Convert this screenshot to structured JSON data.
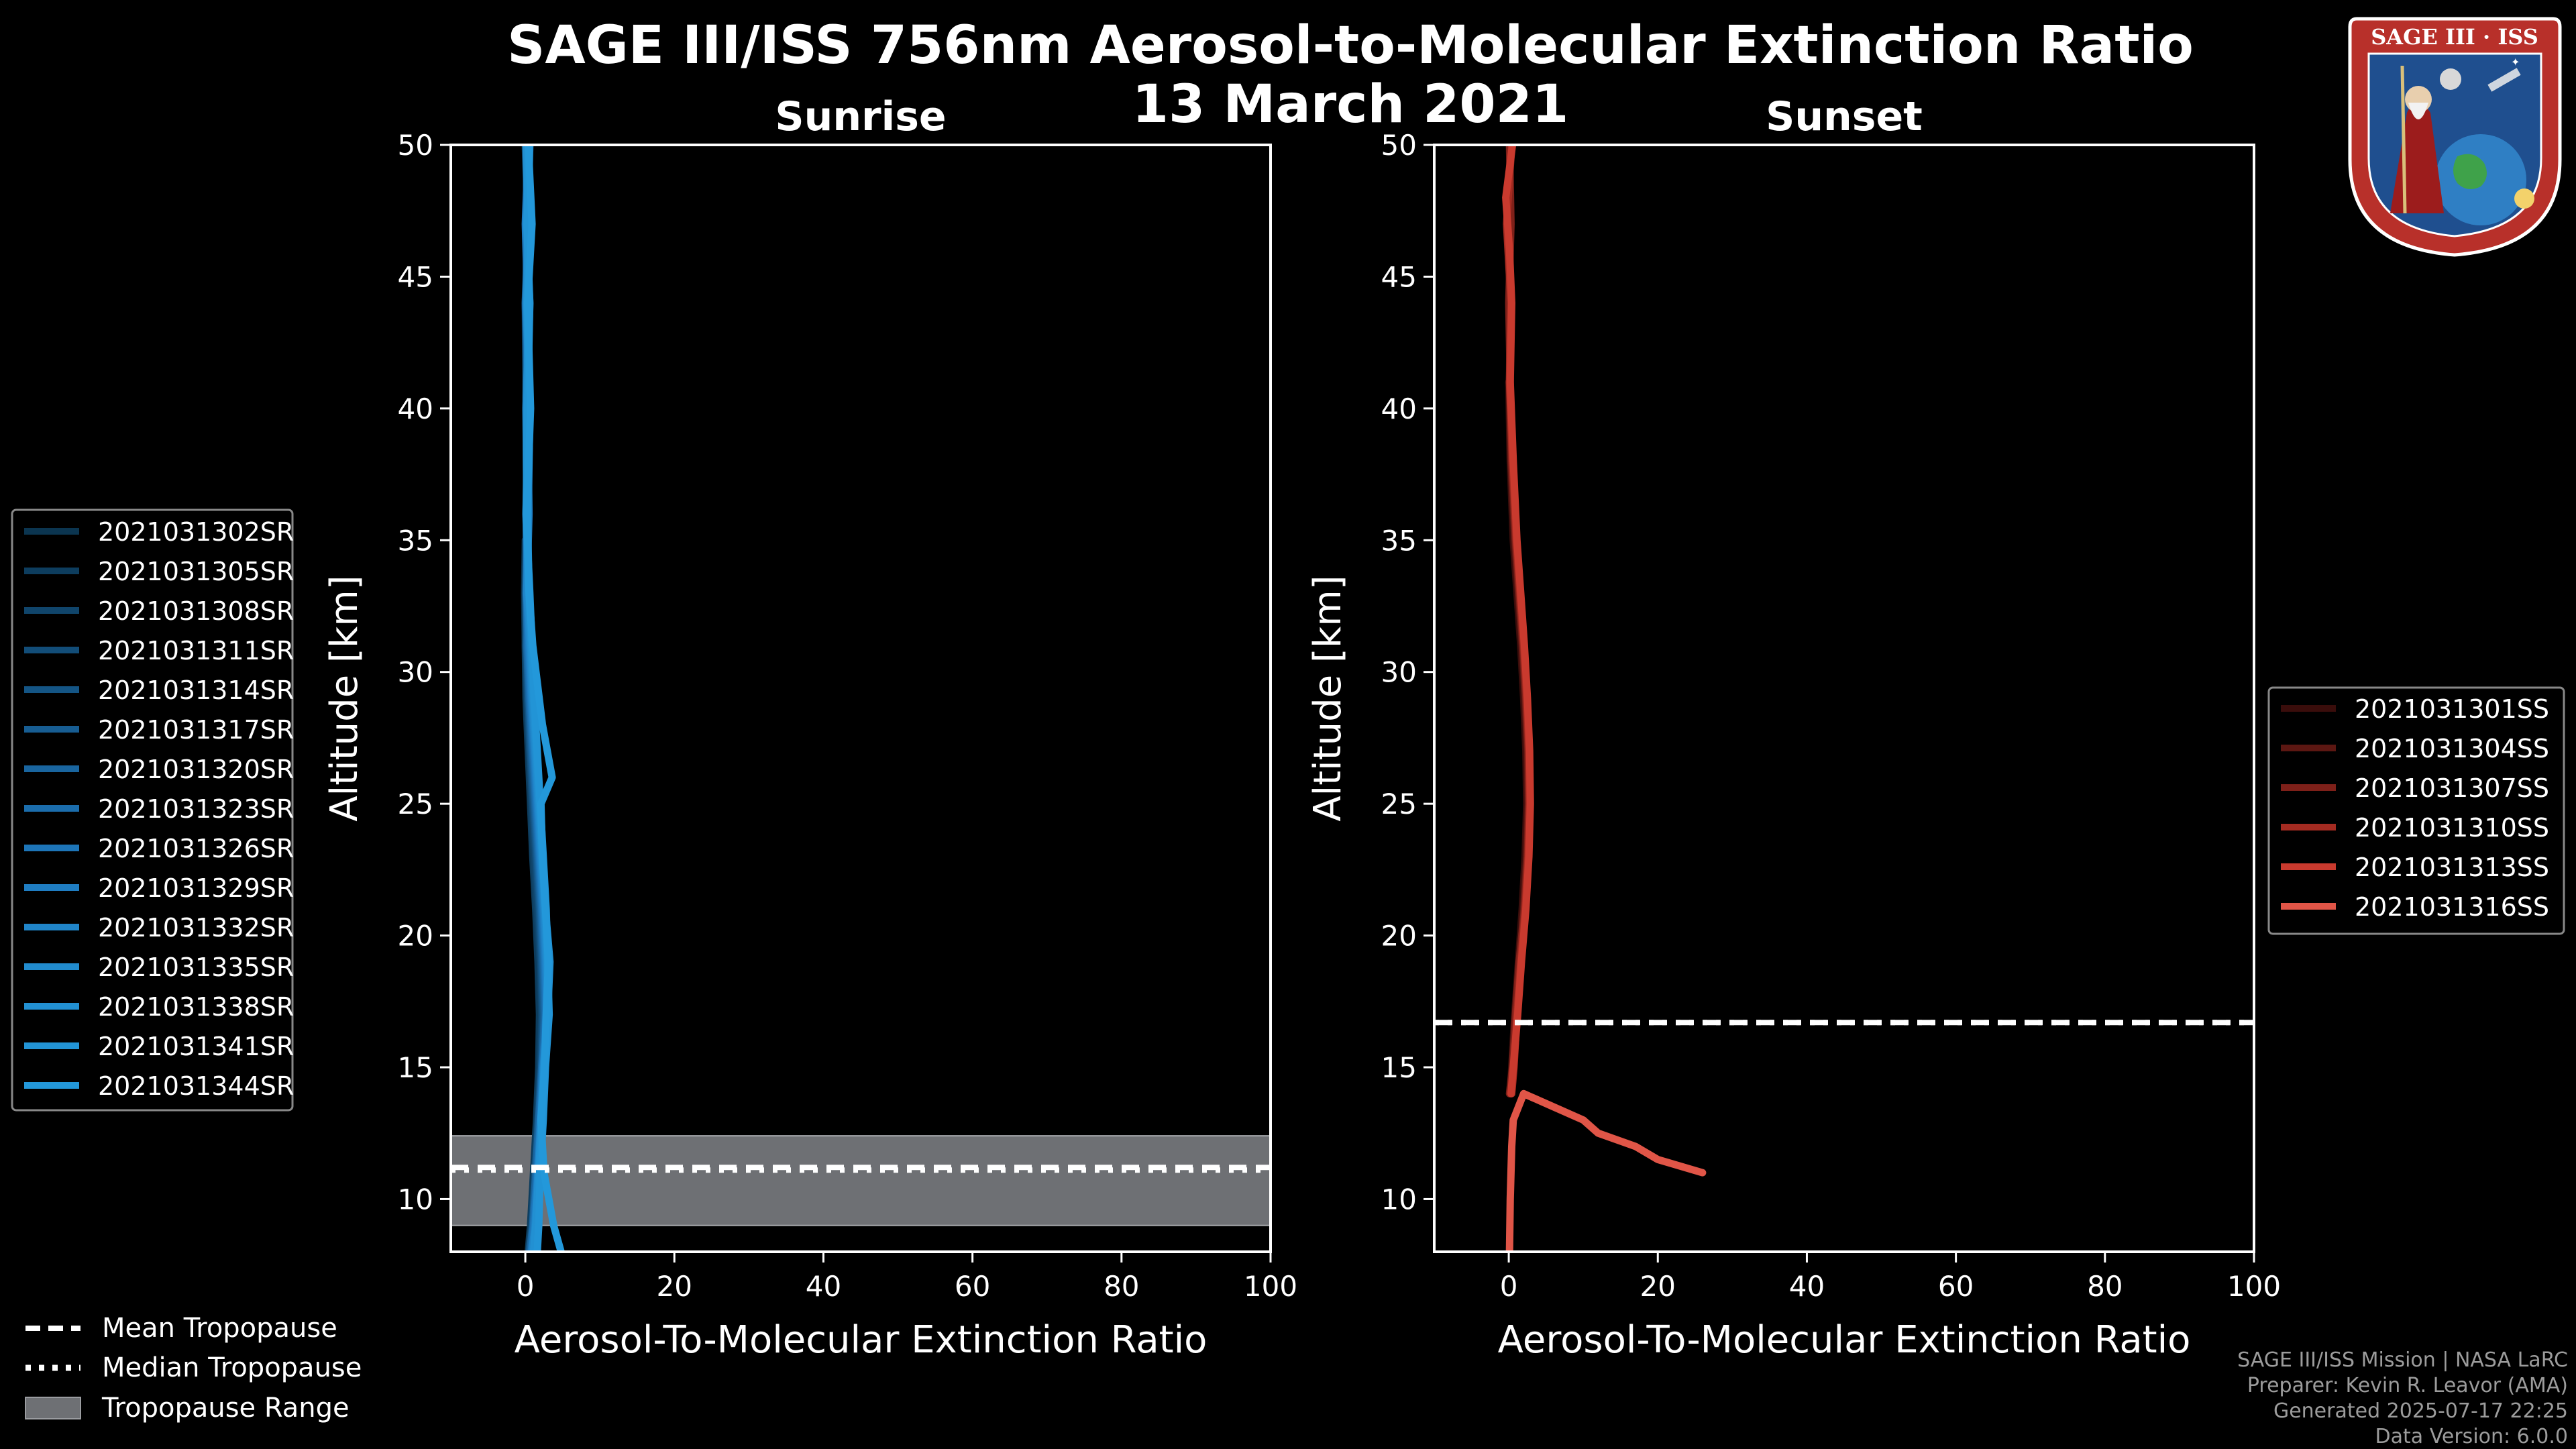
{
  "title": {
    "line1": "SAGE III/ISS 756nm Aerosol-to-Molecular Extinction Ratio",
    "line2": "13 March 2021"
  },
  "footer": {
    "line1": "SAGE III/ISS Mission | NASA LaRC",
    "line2": "Preparer: Kevin R. Leavor (AMA)",
    "line3": "Generated 2025-07-17 22:25",
    "line4": "Data Version: 6.0.0"
  },
  "logo": {
    "text": "SAGE III · ISS",
    "colors": {
      "ring": "#c0392b",
      "inner": "#1f4f8f"
    }
  },
  "tropopause_legend": [
    {
      "label": "Mean Tropopause",
      "style": "dashed"
    },
    {
      "label": "Median Tropopause",
      "style": "dotted"
    },
    {
      "label": "Tropopause Range",
      "style": "band"
    }
  ],
  "chart_data": [
    {
      "type": "line",
      "title": "Sunrise",
      "xlabel": "Aerosol-To-Molecular Extinction Ratio",
      "ylabel": "Altitude [km]",
      "xlim": [
        -10,
        100
      ],
      "ylim": [
        8,
        50
      ],
      "xticks": [
        0,
        20,
        40,
        60,
        80,
        100
      ],
      "yticks": [
        10,
        15,
        20,
        25,
        30,
        35,
        40,
        45,
        50
      ],
      "legend_position": "left",
      "tropopause": {
        "mean": 11.2,
        "median": 11.1,
        "range": [
          9.0,
          12.4
        ]
      },
      "series": [
        {
          "name": "2021031302SR",
          "color": "#0b3550",
          "x": [
            0.6,
            0.8,
            1.2,
            1.6,
            1.9,
            2.0,
            1.8,
            1.5,
            1.1,
            0.8,
            0.5,
            0.2,
            0.0,
            -0.1,
            0.0
          ],
          "y": [
            8,
            9,
            11,
            13,
            15,
            17,
            19,
            21,
            23,
            25,
            27,
            29,
            31,
            33,
            35
          ]
        },
        {
          "name": "2021031305SR",
          "color": "#0d3d5e",
          "x": [
            0.4,
            0.7,
            1.1,
            1.5,
            1.8,
            1.9,
            1.7,
            1.4,
            1.0,
            0.7,
            0.4,
            0.1,
            0.0,
            0.1,
            0.2,
            0.1,
            0.0
          ],
          "y": [
            8,
            9,
            11,
            13,
            15,
            17,
            19,
            21,
            23,
            25,
            27,
            29,
            31,
            33,
            36,
            40,
            44
          ]
        },
        {
          "name": "2021031308SR",
          "color": "#10456b",
          "x": [
            0.8,
            1.1,
            1.4,
            1.7,
            2.0,
            2.2,
            2.0,
            1.6,
            1.2,
            0.9,
            0.6,
            0.3,
            0.1,
            0.0,
            0.2,
            0.3,
            0.0,
            0.3,
            0.0
          ],
          "y": [
            8,
            9,
            11,
            13,
            15,
            17,
            19,
            21,
            23,
            25,
            27,
            29,
            31,
            33,
            36,
            40,
            44,
            47,
            50
          ]
        },
        {
          "name": "2021031311SR",
          "color": "#124d78",
          "x": [
            0.5,
            0.9,
            1.3,
            1.7,
            2.1,
            2.3,
            2.1,
            1.8,
            1.4,
            1.0,
            0.6,
            0.3,
            0.1,
            0.2,
            0.4,
            0.2,
            0.1,
            0.4,
            0.2
          ],
          "y": [
            8,
            9,
            11,
            13,
            15,
            17,
            19,
            21,
            23,
            25,
            27,
            29,
            31,
            33,
            36,
            40,
            44,
            47,
            50
          ]
        },
        {
          "name": "2021031314SR",
          "color": "#145585",
          "x": [
            0.7,
            1.0,
            1.5,
            1.9,
            2.2,
            2.4,
            2.2,
            1.9,
            1.5,
            1.1,
            0.7,
            0.4,
            0.2,
            0.3,
            0.1,
            0.5,
            0.2,
            0.6,
            0.1
          ],
          "y": [
            8,
            9,
            11,
            13,
            15,
            17,
            19,
            21,
            23,
            25,
            27,
            29,
            31,
            33,
            36,
            40,
            44,
            47,
            50
          ]
        },
        {
          "name": "2021031317SR",
          "color": "#175d92",
          "x": [
            0.9,
            1.2,
            1.6,
            2.0,
            2.3,
            2.5,
            2.3,
            2.0,
            1.6,
            1.2,
            0.8,
            0.5,
            0.3,
            0.2,
            0.4,
            0.1,
            0.5,
            0.2,
            0.4
          ],
          "y": [
            8,
            9,
            11,
            13,
            15,
            17,
            19,
            21,
            23,
            25,
            27,
            29,
            31,
            33,
            36,
            40,
            44,
            47,
            50
          ]
        },
        {
          "name": "2021031320SR",
          "color": "#19659f",
          "x": [
            0.6,
            1.0,
            1.4,
            1.8,
            2.2,
            2.6,
            2.4,
            2.1,
            1.7,
            1.3,
            0.9,
            0.5,
            0.2,
            0.4,
            0.2,
            0.4,
            0.0,
            0.5,
            0.3
          ],
          "y": [
            8,
            9,
            11,
            13,
            15,
            17,
            19,
            21,
            23,
            25,
            27,
            29,
            31,
            33,
            36,
            40,
            44,
            47,
            50
          ]
        },
        {
          "name": "2021031323SR",
          "color": "#1b6dac",
          "x": [
            1.0,
            1.3,
            1.7,
            2.1,
            2.4,
            2.7,
            2.5,
            2.2,
            1.8,
            1.4,
            1.0,
            0.6,
            0.3,
            0.1,
            0.3,
            0.2,
            0.6,
            0.1,
            0.5
          ],
          "y": [
            8,
            9,
            11,
            13,
            15,
            17,
            19,
            21,
            23,
            25,
            27,
            29,
            31,
            33,
            36,
            40,
            44,
            47,
            50
          ]
        },
        {
          "name": "2021031326SR",
          "color": "#1d75b8",
          "x": [
            0.8,
            1.1,
            1.6,
            2.0,
            2.3,
            2.8,
            2.6,
            2.3,
            1.9,
            1.5,
            1.1,
            0.7,
            0.4,
            0.2,
            0.5,
            0.3,
            0.2,
            0.6,
            0.2
          ],
          "y": [
            8,
            9,
            11,
            13,
            15,
            17,
            19,
            21,
            23,
            25,
            27,
            29,
            31,
            33,
            36,
            40,
            44,
            47,
            50
          ]
        },
        {
          "name": "2021031329SR",
          "color": "#1f7dc2",
          "x": [
            1.2,
            1.5,
            1.8,
            2.2,
            2.5,
            2.9,
            2.7,
            2.4,
            2.0,
            1.6,
            1.2,
            0.8,
            0.5,
            0.3,
            0.1,
            0.4,
            0.3,
            0.0,
            0.4
          ],
          "y": [
            8,
            9,
            11,
            13,
            15,
            17,
            19,
            21,
            23,
            25,
            27,
            29,
            31,
            33,
            36,
            40,
            44,
            47,
            50
          ]
        },
        {
          "name": "2021031332SR",
          "color": "#2085c9",
          "x": [
            0.9,
            1.3,
            1.7,
            2.1,
            2.4,
            3.0,
            2.8,
            2.5,
            2.1,
            1.7,
            1.3,
            0.9,
            0.6,
            0.2,
            0.4,
            0.6,
            0.1,
            0.5,
            0.3
          ],
          "y": [
            8,
            9,
            11,
            13,
            15,
            17,
            19,
            21,
            23,
            25,
            27,
            29,
            31,
            33,
            36,
            40,
            44,
            47,
            50
          ]
        },
        {
          "name": "2021031335SR",
          "color": "#218bce",
          "x": [
            1.4,
            1.6,
            1.9,
            2.3,
            2.6,
            3.1,
            2.9,
            2.6,
            2.2,
            1.8,
            1.4,
            1.0,
            0.7,
            0.4,
            0.2,
            0.1,
            0.5,
            0.3,
            0.6
          ],
          "y": [
            8,
            9,
            11,
            13,
            15,
            17,
            19,
            21,
            23,
            25,
            27,
            29,
            31,
            33,
            36,
            40,
            44,
            47,
            50
          ]
        },
        {
          "name": "2021031338SR",
          "color": "#2290d2",
          "x": [
            1.1,
            1.4,
            1.8,
            2.2,
            2.5,
            3.0,
            3.3,
            2.7,
            2.3,
            1.9,
            1.5,
            1.1,
            0.8,
            0.5,
            0.3,
            0.5,
            0.2,
            0.4,
            0.1
          ],
          "y": [
            8,
            9,
            11,
            13,
            15,
            17,
            19,
            21,
            23,
            25,
            27,
            29,
            31,
            33,
            36,
            40,
            44,
            47,
            50
          ]
        },
        {
          "name": "2021031341SR",
          "color": "#2294d6",
          "x": [
            1.6,
            1.8,
            2.0,
            2.4,
            2.7,
            3.2,
            3.0,
            2.8,
            2.4,
            2.0,
            1.6,
            1.2,
            0.9,
            0.6,
            0.1,
            0.3,
            0.6,
            0.2,
            0.5
          ],
          "y": [
            8,
            9,
            11,
            13,
            15,
            17,
            19,
            21,
            23,
            25,
            27,
            29,
            31,
            33,
            36,
            40,
            44,
            47,
            50
          ]
        },
        {
          "name": "2021031344SR",
          "color": "#2398da",
          "x": [
            4.8,
            3.8,
            2.5,
            2.1,
            2.6,
            2.8,
            3.1,
            2.7,
            2.3,
            2.1,
            3.6,
            2.3,
            1.0,
            0.5,
            0.2,
            0.7,
            0.3,
            0.9,
            0.4
          ],
          "y": [
            8,
            9,
            11,
            13,
            15,
            17,
            19,
            21,
            23,
            25,
            26,
            28,
            31,
            33,
            36,
            40,
            44,
            47,
            50
          ]
        }
      ]
    },
    {
      "type": "line",
      "title": "Sunset",
      "xlabel": "Aerosol-To-Molecular Extinction Ratio",
      "ylabel": "Altitude [km]",
      "xlim": [
        -10,
        100
      ],
      "ylim": [
        8,
        50
      ],
      "xticks": [
        0,
        20,
        40,
        60,
        80,
        100
      ],
      "yticks": [
        10,
        15,
        20,
        25,
        30,
        35,
        40,
        45,
        50
      ],
      "legend_position": "right",
      "tropopause": {
        "mean": 16.7,
        "median": 16.7
      },
      "series": [
        {
          "name": "2021031301SS",
          "color": "#3a0d0b",
          "x": [
            0.2,
            0.4,
            0.8,
            1.3,
            1.8,
            2.2,
            2.4,
            2.3,
            2.0,
            1.6,
            1.1,
            0.6,
            0.2,
            0.0
          ],
          "y": [
            14,
            15,
            17,
            19,
            21,
            23,
            25,
            27,
            29,
            31,
            33,
            35,
            38,
            41
          ]
        },
        {
          "name": "2021031304SS",
          "color": "#5c1712",
          "x": [
            0.3,
            0.6,
            1.0,
            1.5,
            2.0,
            2.4,
            2.6,
            2.5,
            2.2,
            1.8,
            1.3,
            0.8,
            0.3,
            0.1,
            0.2,
            0.0
          ],
          "y": [
            14,
            15,
            17,
            19,
            21,
            23,
            25,
            27,
            29,
            31,
            33,
            35,
            38,
            41,
            44,
            47
          ]
        },
        {
          "name": "2021031307SS",
          "color": "#7e2019",
          "x": [
            0.1,
            0.5,
            0.9,
            1.4,
            2.1,
            2.5,
            2.7,
            2.6,
            2.3,
            1.9,
            1.4,
            0.9,
            0.4,
            0.2,
            0.0,
            0.3,
            0.1
          ],
          "y": [
            14,
            15,
            17,
            19,
            21,
            23,
            25,
            27,
            29,
            31,
            33,
            35,
            38,
            41,
            44,
            47,
            50
          ]
        },
        {
          "name": "2021031310SS",
          "color": "#a42b21",
          "x": [
            0.4,
            0.7,
            1.1,
            1.6,
            2.2,
            2.6,
            2.8,
            2.7,
            2.4,
            2.0,
            1.5,
            1.0,
            0.5,
            0.1,
            0.3,
            -0.3,
            0.4
          ],
          "y": [
            14,
            15,
            17,
            19,
            21,
            23,
            25,
            27,
            29,
            31,
            33,
            35,
            38,
            41,
            44,
            47,
            50
          ]
        },
        {
          "name": "2021031313SS",
          "color": "#c93a2e",
          "x": [
            0.3,
            0.6,
            1.2,
            1.7,
            2.3,
            2.7,
            2.9,
            2.8,
            2.5,
            2.1,
            1.6,
            1.1,
            0.6,
            0.2,
            0.4,
            0.1,
            -0.4,
            0.5
          ],
          "y": [
            14,
            15,
            17,
            19,
            21,
            23,
            25,
            27,
            29,
            31,
            33,
            35,
            38,
            41,
            44,
            46,
            48,
            50
          ]
        },
        {
          "name": "2021031316SS",
          "color": "#e05547",
          "x": [
            0.1,
            0.2,
            0.4,
            0.6,
            2.0,
            10.0,
            12.0,
            17.0,
            20.0,
            26.0
          ],
          "y": [
            8,
            10,
            12,
            13,
            14.0,
            13.0,
            12.5,
            12.0,
            11.5,
            11.0
          ]
        }
      ]
    }
  ]
}
